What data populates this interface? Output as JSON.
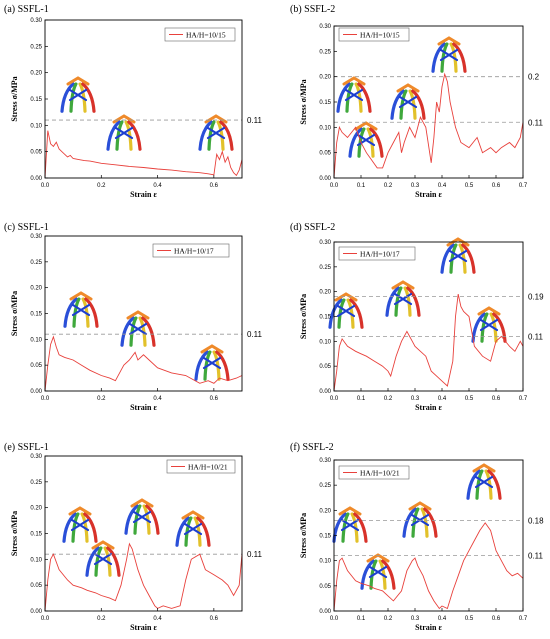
{
  "chart_data": [
    {
      "type": "line",
      "title": "(a) SSFL-1",
      "xlabel": "Strain ε",
      "ylabel": "Stress σ/MPa",
      "xlim": [
        0,
        0.7
      ],
      "ylim": [
        0,
        0.3
      ],
      "xticks": [
        "0.0",
        "0.2",
        "0.4",
        "0.6"
      ],
      "yticks": [
        "0.00",
        "0.05",
        "0.10",
        "0.15",
        "0.20",
        "0.25",
        "0.30"
      ],
      "legend": "top-right",
      "series": [
        {
          "name": "HA/H=10/15",
          "color": "#e8413c",
          "x": [
            0,
            0.01,
            0.02,
            0.03,
            0.04,
            0.05,
            0.06,
            0.07,
            0.08,
            0.09,
            0.1,
            0.12,
            0.14,
            0.16,
            0.18,
            0.2,
            0.25,
            0.3,
            0.35,
            0.4,
            0.45,
            0.5,
            0.55,
            0.58,
            0.6,
            0.61,
            0.62,
            0.63,
            0.64,
            0.65,
            0.66,
            0.67,
            0.68,
            0.69,
            0.7
          ],
          "y": [
            0,
            0.09,
            0.065,
            0.06,
            0.068,
            0.055,
            0.05,
            0.045,
            0.04,
            0.043,
            0.037,
            0.035,
            0.033,
            0.032,
            0.03,
            0.028,
            0.025,
            0.022,
            0.02,
            0.017,
            0.015,
            0.012,
            0.01,
            0.008,
            0.006,
            0.045,
            0.035,
            0.05,
            0.03,
            0.04,
            0.02,
            0.01,
            0.005,
            0.015,
            0.035
          ]
        }
      ],
      "reference_lines": [
        {
          "y": 0.11,
          "label": "0.11"
        }
      ]
    },
    {
      "type": "line",
      "title": "(b) SSFL-2",
      "xlabel": "Strain ε",
      "ylabel": "Stress σ/MPa",
      "xlim": [
        0,
        0.7
      ],
      "ylim": [
        0,
        0.3
      ],
      "xticks": [
        "0.0",
        "0.1",
        "0.2",
        "0.3",
        "0.4",
        "0.5",
        "0.6",
        "0.7"
      ],
      "yticks": [
        "0.00",
        "0.05",
        "0.10",
        "0.15",
        "0.20",
        "0.25",
        "0.30"
      ],
      "legend": "top-left",
      "series": [
        {
          "name": "HA/H=10/15",
          "color": "#e8413c",
          "x": [
            0,
            0.01,
            0.02,
            0.03,
            0.05,
            0.08,
            0.1,
            0.12,
            0.14,
            0.16,
            0.18,
            0.2,
            0.22,
            0.24,
            0.25,
            0.26,
            0.28,
            0.3,
            0.32,
            0.34,
            0.36,
            0.37,
            0.38,
            0.39,
            0.4,
            0.41,
            0.42,
            0.43,
            0.45,
            0.47,
            0.5,
            0.53,
            0.55,
            0.58,
            0.6,
            0.62,
            0.65,
            0.67,
            0.69,
            0.7
          ],
          "y": [
            0,
            0.07,
            0.1,
            0.09,
            0.08,
            0.1,
            0.07,
            0.05,
            0.035,
            0.02,
            0.02,
            0.05,
            0.07,
            0.09,
            0.05,
            0.07,
            0.1,
            0.08,
            0.12,
            0.1,
            0.03,
            0.08,
            0.15,
            0.13,
            0.18,
            0.205,
            0.19,
            0.15,
            0.1,
            0.07,
            0.06,
            0.08,
            0.05,
            0.06,
            0.05,
            0.06,
            0.07,
            0.06,
            0.08,
            0.11
          ]
        }
      ],
      "reference_lines": [
        {
          "y": 0.2,
          "label": "0.2"
        },
        {
          "y": 0.11,
          "label": "0.11"
        }
      ]
    },
    {
      "type": "line",
      "title": "(c) SSFL-1",
      "xlabel": "Strain ε",
      "ylabel": "Stress σ/MPa",
      "xlim": [
        0,
        0.7
      ],
      "ylim": [
        0,
        0.3
      ],
      "xticks": [
        "0.0",
        "0.2",
        "0.4",
        "0.6"
      ],
      "yticks": [
        "0.00",
        "0.05",
        "0.10",
        "0.15",
        "0.20",
        "0.25",
        "0.30"
      ],
      "legend": "top-right",
      "series": [
        {
          "name": "HA/H=10/17",
          "color": "#e8413c",
          "x": [
            0,
            0.01,
            0.02,
            0.03,
            0.04,
            0.05,
            0.07,
            0.1,
            0.13,
            0.16,
            0.2,
            0.23,
            0.25,
            0.27,
            0.28,
            0.3,
            0.32,
            0.33,
            0.35,
            0.37,
            0.4,
            0.45,
            0.5,
            0.55,
            0.58,
            0.6,
            0.62,
            0.65,
            0.68,
            0.7
          ],
          "y": [
            0,
            0.05,
            0.09,
            0.105,
            0.085,
            0.07,
            0.065,
            0.06,
            0.05,
            0.04,
            0.03,
            0.025,
            0.02,
            0.04,
            0.05,
            0.06,
            0.075,
            0.06,
            0.07,
            0.06,
            0.045,
            0.035,
            0.03,
            0.015,
            0.02,
            0.015,
            0.025,
            0.02,
            0.025,
            0.03
          ]
        }
      ],
      "reference_lines": [
        {
          "y": 0.11,
          "label": "0.11"
        }
      ]
    },
    {
      "type": "line",
      "title": "(d) SSFL-2",
      "xlabel": "Strain ε",
      "ylabel": "Stress σ/MPa",
      "xlim": [
        0,
        0.7
      ],
      "ylim": [
        0,
        0.3
      ],
      "xticks": [
        "0.0",
        "0.1",
        "0.2",
        "0.3",
        "0.4",
        "0.5",
        "0.6",
        "0.7"
      ],
      "yticks": [
        "0.00",
        "0.05",
        "0.10",
        "0.15",
        "0.20",
        "0.25",
        "0.30"
      ],
      "legend": "top-left",
      "series": [
        {
          "name": "HA/H=10/17",
          "color": "#e8413c",
          "x": [
            0,
            0.01,
            0.02,
            0.03,
            0.05,
            0.08,
            0.1,
            0.12,
            0.15,
            0.18,
            0.2,
            0.21,
            0.23,
            0.25,
            0.27,
            0.28,
            0.29,
            0.3,
            0.32,
            0.34,
            0.36,
            0.38,
            0.4,
            0.42,
            0.44,
            0.45,
            0.46,
            0.47,
            0.48,
            0.5,
            0.52,
            0.55,
            0.58,
            0.6,
            0.62,
            0.65,
            0.67,
            0.69,
            0.7
          ],
          "y": [
            0,
            0.04,
            0.09,
            0.105,
            0.09,
            0.08,
            0.075,
            0.07,
            0.06,
            0.05,
            0.04,
            0.03,
            0.07,
            0.1,
            0.12,
            0.11,
            0.1,
            0.09,
            0.08,
            0.07,
            0.04,
            0.03,
            0.02,
            0.01,
            0.06,
            0.15,
            0.195,
            0.17,
            0.16,
            0.15,
            0.09,
            0.07,
            0.06,
            0.1,
            0.11,
            0.09,
            0.08,
            0.1,
            0.09
          ]
        }
      ],
      "reference_lines": [
        {
          "y": 0.19,
          "label": "0.19"
        },
        {
          "y": 0.11,
          "label": "0.11"
        }
      ]
    },
    {
      "type": "line",
      "title": "(e) SSFL-1",
      "xlabel": "Strain ε",
      "ylabel": "Stress σ/MPa",
      "xlim": [
        0,
        0.7
      ],
      "ylim": [
        0,
        0.3
      ],
      "xticks": [
        "0.0",
        "0.2",
        "0.4",
        "0.6"
      ],
      "yticks": [
        "0.00",
        "0.05",
        "0.10",
        "0.15",
        "0.20",
        "0.25",
        "0.30"
      ],
      "legend": "top-right",
      "series": [
        {
          "name": "HA/H=10/21",
          "color": "#e8413c",
          "x": [
            0,
            0.01,
            0.02,
            0.03,
            0.05,
            0.08,
            0.1,
            0.13,
            0.15,
            0.18,
            0.2,
            0.23,
            0.25,
            0.27,
            0.29,
            0.3,
            0.31,
            0.33,
            0.35,
            0.37,
            0.39,
            0.4,
            0.42,
            0.45,
            0.48,
            0.5,
            0.52,
            0.55,
            0.57,
            0.6,
            0.63,
            0.65,
            0.67,
            0.69,
            0.7
          ],
          "y": [
            0,
            0.06,
            0.1,
            0.11,
            0.08,
            0.06,
            0.05,
            0.045,
            0.04,
            0.035,
            0.03,
            0.025,
            0.02,
            0.05,
            0.1,
            0.13,
            0.12,
            0.08,
            0.05,
            0.03,
            0.01,
            0.005,
            0.01,
            0.005,
            0.01,
            0.06,
            0.1,
            0.11,
            0.08,
            0.07,
            0.06,
            0.05,
            0.03,
            0.05,
            0.11
          ]
        }
      ],
      "reference_lines": [
        {
          "y": 0.11,
          "label": "0.11"
        }
      ]
    },
    {
      "type": "line",
      "title": "(f) SSFL-2",
      "xlabel": "Strain ε",
      "ylabel": "Stress σ/MPa",
      "xlim": [
        0,
        0.7
      ],
      "ylim": [
        0,
        0.3
      ],
      "xticks": [
        "0.0",
        "0.1",
        "0.2",
        "0.3",
        "0.4",
        "0.5",
        "0.6",
        "0.7"
      ],
      "yticks": [
        "0.00",
        "0.05",
        "0.10",
        "0.15",
        "0.20",
        "0.25",
        "0.30"
      ],
      "legend": "top-left",
      "series": [
        {
          "name": "HA/H=10/21",
          "color": "#e8413c",
          "x": [
            0,
            0.01,
            0.02,
            0.03,
            0.05,
            0.08,
            0.1,
            0.13,
            0.15,
            0.18,
            0.2,
            0.22,
            0.25,
            0.27,
            0.29,
            0.3,
            0.31,
            0.33,
            0.35,
            0.37,
            0.39,
            0.4,
            0.42,
            0.44,
            0.46,
            0.48,
            0.5,
            0.52,
            0.54,
            0.56,
            0.58,
            0.6,
            0.62,
            0.64,
            0.66,
            0.68,
            0.7
          ],
          "y": [
            0,
            0.06,
            0.1,
            0.105,
            0.08,
            0.06,
            0.055,
            0.05,
            0.045,
            0.04,
            0.03,
            0.02,
            0.04,
            0.08,
            0.1,
            0.105,
            0.09,
            0.07,
            0.04,
            0.02,
            0.005,
            0.01,
            0.005,
            0.04,
            0.07,
            0.1,
            0.12,
            0.14,
            0.16,
            0.175,
            0.16,
            0.12,
            0.1,
            0.08,
            0.07,
            0.075,
            0.065
          ]
        }
      ],
      "reference_lines": [
        {
          "y": 0.18,
          "label": "0.18"
        },
        {
          "y": 0.11,
          "label": "0.11"
        }
      ]
    }
  ]
}
